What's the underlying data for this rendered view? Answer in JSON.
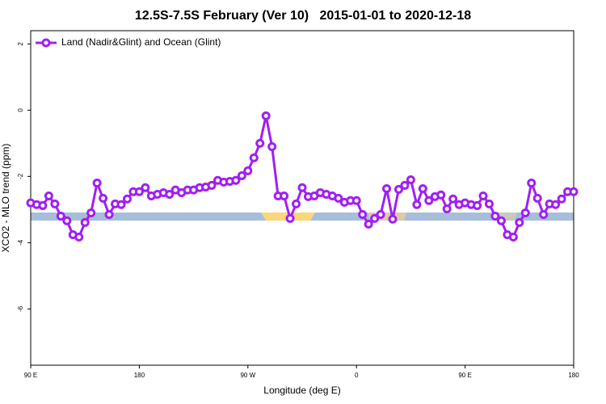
{
  "chart_data": {
    "type": "line",
    "title": "12.5S-7.5S February (Ver 10)   2015-01-01 to 2020-12-18",
    "x_label": "Longitude (deg E)",
    "y_label": "XCO2 - MLO trend (ppm)",
    "xlim": [
      90,
      540
    ],
    "ylim": [
      -7.7,
      2.4
    ],
    "xticks": [
      {
        "value": 90,
        "label": "90 E"
      },
      180,
      {
        "value": 270,
        "label": "90 W"
      },
      {
        "value": 360,
        "label": "0"
      },
      {
        "value": 450,
        "label": "90 E"
      },
      {
        "value": 540,
        "label": "180"
      }
    ],
    "yticks": [
      2,
      0,
      -2,
      -4,
      -6
    ],
    "legend": "top-left",
    "grid": false,
    "x": [
      90,
      95,
      100,
      105,
      110,
      115,
      120,
      125,
      130,
      135,
      140,
      145,
      150,
      155,
      160,
      165,
      170,
      175,
      180,
      185,
      190,
      195,
      200,
      205,
      210,
      215,
      220,
      225,
      230,
      235,
      240,
      245,
      250,
      255,
      260,
      265,
      270,
      275,
      280,
      285,
      290,
      295,
      300,
      305,
      310,
      315,
      320,
      325,
      330,
      335,
      340,
      345,
      350,
      355,
      360,
      365,
      370,
      375,
      380,
      385,
      390,
      395,
      400,
      405,
      410,
      415,
      420,
      425,
      430,
      435,
      440,
      445,
      450,
      455,
      460,
      465,
      470,
      475,
      480,
      485,
      490,
      495,
      500,
      505,
      510,
      515,
      520,
      525,
      530,
      535,
      540
    ],
    "series": [
      {
        "name": "Land (Nadir&Glint) and Ocean (Glint)",
        "color": "#a020f0",
        "values": [
          -2.8,
          -2.85,
          -2.88,
          -2.59,
          -2.83,
          -3.2,
          -3.34,
          -3.76,
          -3.83,
          -3.39,
          -3.1,
          -2.2,
          -2.66,
          -3.15,
          -2.83,
          -2.85,
          -2.68,
          -2.46,
          -2.46,
          -2.34,
          -2.59,
          -2.54,
          -2.49,
          -2.54,
          -2.41,
          -2.49,
          -2.41,
          -2.41,
          -2.34,
          -2.32,
          -2.27,
          -2.12,
          -2.17,
          -2.15,
          -2.12,
          -1.98,
          -1.83,
          -1.44,
          -1.0,
          -0.17,
          -1.1,
          -2.59,
          -2.59,
          -3.27,
          -2.83,
          -2.34,
          -2.61,
          -2.59,
          -2.49,
          -2.54,
          -2.59,
          -2.66,
          -2.78,
          -2.73,
          -2.73,
          -3.15,
          -3.44,
          -3.27,
          -3.15,
          -2.37,
          -3.29,
          -2.39,
          -2.27,
          -2.1,
          -2.85,
          -2.37,
          -2.73,
          -2.61,
          -2.56,
          -2.98,
          -2.68,
          -2.85,
          -2.8,
          -2.85,
          -2.88,
          -2.59,
          -2.83,
          -3.2,
          -3.34,
          -3.76,
          -3.83,
          -3.39,
          -3.1,
          -2.2,
          -2.66,
          -3.15,
          -2.83,
          -2.85,
          -2.68,
          -2.46,
          -2.46
        ]
      }
    ]
  }
}
